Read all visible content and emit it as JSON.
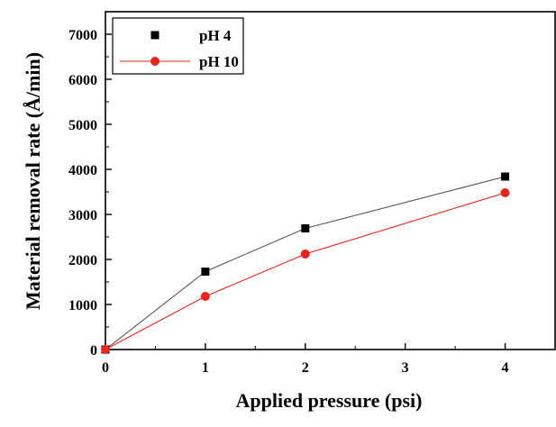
{
  "chart_data": {
    "type": "line",
    "xlabel": "Applied pressure (psi)",
    "ylabel": "Material removal rate (Å/min)",
    "xlim": [
      0,
      4.5
    ],
    "ylim": [
      0,
      7500
    ],
    "x_ticks": [
      0,
      1,
      2,
      3,
      4
    ],
    "y_ticks": [
      0,
      1000,
      2000,
      3000,
      4000,
      5000,
      6000,
      7000
    ],
    "grid": false,
    "legend_position": "top-left",
    "series": [
      {
        "name": "pH 4",
        "marker": "square",
        "marker_color": "#000000",
        "line_color": "#555555",
        "x": [
          0,
          1,
          2,
          4
        ],
        "y": [
          0,
          1730,
          2690,
          3840
        ]
      },
      {
        "name": "pH 10",
        "marker": "circle",
        "marker_color": "#e8241d",
        "line_color": "#e8241d",
        "x": [
          0,
          1,
          2,
          4
        ],
        "y": [
          0,
          1180,
          2120,
          3480
        ]
      }
    ]
  }
}
